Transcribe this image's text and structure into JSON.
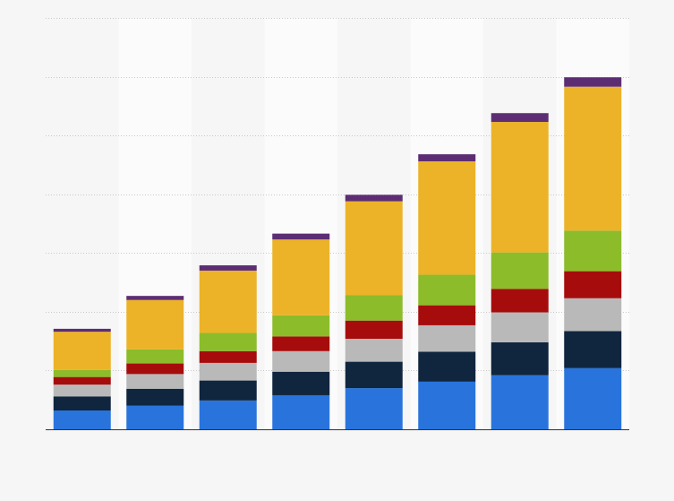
{
  "chart_data": {
    "type": "bar",
    "stacked": true,
    "categories": [
      "",
      "",
      "",
      "",
      "",
      "",
      "",
      ""
    ],
    "ylim": [
      0,
      7
    ],
    "grid": true,
    "legend": "none",
    "series": [
      {
        "color": "#2874dc",
        "values": [
          0.32,
          0.4,
          0.49,
          0.58,
          0.7,
          0.81,
          0.92,
          1.04
        ]
      },
      {
        "color": "#10253e",
        "values": [
          0.24,
          0.29,
          0.34,
          0.4,
          0.45,
          0.51,
          0.56,
          0.63
        ]
      },
      {
        "color": "#b9b9b9",
        "values": [
          0.2,
          0.25,
          0.3,
          0.35,
          0.39,
          0.45,
          0.51,
          0.56
        ]
      },
      {
        "color": "#a60c0c",
        "values": [
          0.13,
          0.18,
          0.2,
          0.25,
          0.31,
          0.34,
          0.4,
          0.46
        ]
      },
      {
        "color": "#8cbc2a",
        "values": [
          0.12,
          0.24,
          0.31,
          0.36,
          0.43,
          0.52,
          0.62,
          0.69
        ]
      },
      {
        "color": "#ecb328",
        "values": [
          0.65,
          0.84,
          1.06,
          1.29,
          1.6,
          1.93,
          2.22,
          2.45
        ]
      },
      {
        "color": "#5d2d74",
        "values": [
          0.05,
          0.07,
          0.09,
          0.1,
          0.11,
          0.12,
          0.15,
          0.16
        ]
      }
    ]
  }
}
